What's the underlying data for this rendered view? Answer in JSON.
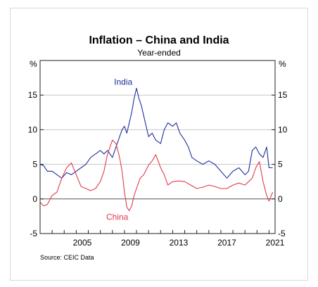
{
  "chart_data": {
    "type": "line",
    "title": "Inflation – China and India",
    "subtitle": "Year-ended",
    "unit_left": "%",
    "unit_right": "%",
    "ylim": [
      -5,
      20
    ],
    "yticks": [
      "-5",
      "0",
      "5",
      "10",
      "15"
    ],
    "xlim": [
      2002.0,
      2021.5
    ],
    "xticks": [
      "2005",
      "2009",
      "2013",
      "2017",
      "2021"
    ],
    "grid": true,
    "source": "Source:   CEIC Data",
    "series": [
      {
        "name": "India",
        "color": "#1f2f9a",
        "x": [
          2002.0,
          2002.3,
          2002.6,
          2003.0,
          2003.4,
          2003.8,
          2004.2,
          2004.6,
          2005.0,
          2005.4,
          2005.8,
          2006.2,
          2006.6,
          2007.0,
          2007.3,
          2007.6,
          2008.0,
          2008.3,
          2008.6,
          2008.8,
          2009.0,
          2009.2,
          2009.4,
          2009.6,
          2009.8,
          2010.0,
          2010.2,
          2010.4,
          2010.6,
          2010.8,
          2011.0,
          2011.3,
          2011.6,
          2012.0,
          2012.3,
          2012.6,
          2013.0,
          2013.3,
          2013.6,
          2014.0,
          2014.3,
          2014.6,
          2015.0,
          2015.5,
          2016.0,
          2016.5,
          2017.0,
          2017.5,
          2018.0,
          2018.5,
          2019.0,
          2019.3,
          2019.6,
          2019.9,
          2020.2,
          2020.5,
          2020.8,
          2021.0,
          2021.3
        ],
        "values": [
          5.0,
          4.8,
          4.0,
          4.0,
          3.5,
          3.0,
          3.8,
          3.5,
          4.0,
          4.5,
          5.0,
          6.0,
          6.5,
          7.0,
          6.5,
          7.0,
          6.0,
          7.5,
          9.0,
          10.0,
          10.5,
          9.5,
          11.0,
          12.5,
          14.5,
          16.0,
          14.5,
          13.5,
          12.0,
          10.5,
          9.0,
          9.5,
          8.5,
          8.0,
          10.0,
          11.0,
          10.5,
          11.0,
          9.5,
          8.5,
          7.5,
          6.0,
          5.5,
          5.0,
          5.5,
          5.0,
          4.0,
          3.0,
          4.0,
          4.5,
          3.5,
          4.0,
          7.0,
          7.5,
          6.5,
          6.0,
          7.5,
          4.5,
          4.5
        ]
      },
      {
        "name": "China",
        "color": "#e03b4b",
        "x": [
          2002.0,
          2002.3,
          2002.6,
          2003.0,
          2003.4,
          2003.8,
          2004.2,
          2004.6,
          2005.0,
          2005.4,
          2005.8,
          2006.2,
          2006.6,
          2007.0,
          2007.3,
          2007.6,
          2008.0,
          2008.3,
          2008.6,
          2008.8,
          2009.0,
          2009.2,
          2009.4,
          2009.6,
          2009.8,
          2010.0,
          2010.3,
          2010.6,
          2011.0,
          2011.3,
          2011.6,
          2012.0,
          2012.3,
          2012.6,
          2013.0,
          2013.5,
          2014.0,
          2014.5,
          2015.0,
          2015.5,
          2016.0,
          2016.5,
          2017.0,
          2017.5,
          2018.0,
          2018.5,
          2019.0,
          2019.3,
          2019.6,
          2019.9,
          2020.2,
          2020.5,
          2020.8,
          2021.0,
          2021.3
        ],
        "values": [
          -0.5,
          -1.0,
          -0.8,
          0.5,
          1.0,
          3.0,
          4.5,
          5.2,
          3.5,
          1.8,
          1.5,
          1.2,
          1.5,
          2.5,
          4.0,
          6.5,
          8.5,
          8.0,
          6.0,
          4.0,
          1.0,
          -1.2,
          -1.7,
          -1.0,
          0.5,
          1.5,
          3.0,
          3.5,
          4.9,
          5.5,
          6.4,
          4.5,
          3.5,
          2.0,
          2.5,
          2.6,
          2.5,
          2.0,
          1.5,
          1.7,
          2.0,
          1.8,
          1.5,
          1.5,
          2.0,
          2.3,
          2.0,
          2.5,
          3.0,
          4.5,
          5.4,
          2.5,
          0.5,
          -0.3,
          1.0
        ]
      }
    ],
    "annotations": [
      {
        "label": "India",
        "x": 2008.9,
        "y": 16.5
      },
      {
        "label": "China",
        "x": 2008.4,
        "y": -3.0
      }
    ]
  }
}
